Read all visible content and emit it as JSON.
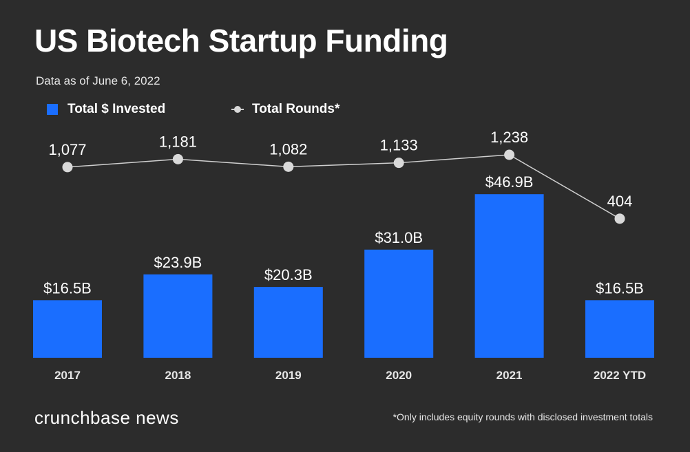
{
  "title": "US Biotech Startup Funding",
  "subtitle": "Data as of June 6, 2022",
  "legend": {
    "bar_label": "Total $ Invested",
    "line_label": "Total Rounds*"
  },
  "footer": {
    "logo_text": "crunchbase news",
    "footnote": "*Only includes equity rounds with disclosed investment totals"
  },
  "colors": {
    "background": "#2c2c2c",
    "bar": "#1a6eff",
    "line": "#cfcfcf",
    "marker": "#d9d9d9",
    "text": "#ffffff"
  },
  "chart_data": {
    "type": "bar",
    "categories": [
      "2017",
      "2018",
      "2019",
      "2020",
      "2021",
      "2022 YTD"
    ],
    "series": [
      {
        "name": "Total $ Invested",
        "type": "bar",
        "values": [
          16.5,
          23.9,
          20.3,
          31.0,
          46.9,
          16.5
        ],
        "labels": [
          "$16.5B",
          "$23.9B",
          "$20.3B",
          "$31.0B",
          "$46.9B",
          "$16.5B"
        ]
      },
      {
        "name": "Total Rounds*",
        "type": "line",
        "values": [
          1077,
          1181,
          1082,
          1133,
          1238,
          404
        ],
        "labels": [
          "1,077",
          "1,181",
          "1,082",
          "1,133",
          "1,238",
          "404"
        ]
      }
    ],
    "legend_position": "top-left",
    "grid": false
  }
}
